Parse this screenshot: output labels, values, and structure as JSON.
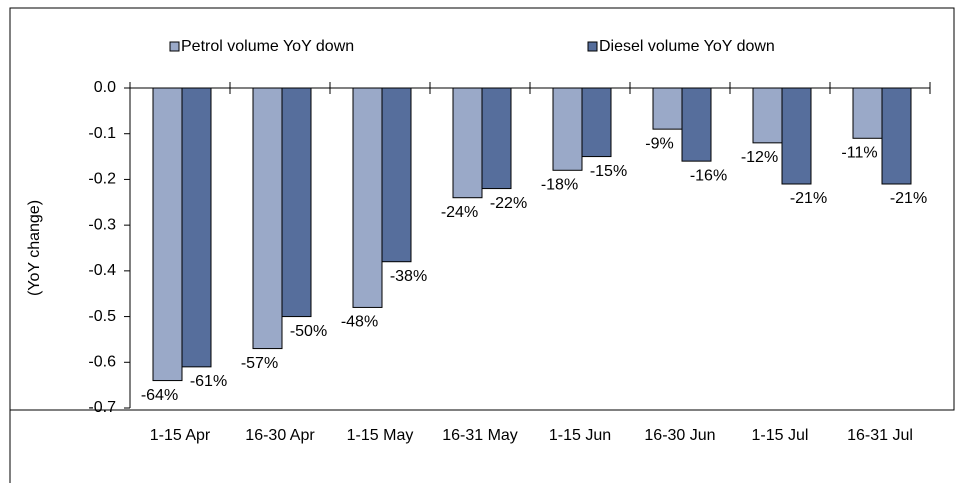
{
  "chart_data": {
    "type": "bar",
    "y_label": "(YoY change)",
    "categories": [
      "1-15 Apr",
      "16-30 Apr",
      "1-15 May",
      "16-31 May",
      "1-15 Jun",
      "16-30 Jun",
      "1-15 Jul",
      "16-31 Jul"
    ],
    "series": [
      {
        "name": "Petrol volume YoY down",
        "color": "#9aa9c8",
        "values": [
          -0.64,
          -0.57,
          -0.48,
          -0.24,
          -0.18,
          -0.09,
          -0.12,
          -0.11
        ],
        "value_labels": [
          "-64%",
          "-57%",
          "-48%",
          "-24%",
          "-18%",
          "-9%",
          "-12%",
          "-11%"
        ]
      },
      {
        "name": "Diesel volume YoY down",
        "color": "#566e9c",
        "values": [
          -0.61,
          -0.5,
          -0.38,
          -0.22,
          -0.15,
          -0.16,
          -0.21,
          -0.21
        ],
        "value_labels": [
          "-61%",
          "-50%",
          "-38%",
          "-22%",
          "-15%",
          "-16%",
          "-21%",
          "-21%"
        ]
      }
    ],
    "ylim": [
      -0.7,
      0
    ],
    "yticks": [
      {
        "value": 0,
        "label": "0.0"
      },
      -0.1,
      -0.2,
      -0.3,
      -0.4,
      -0.5,
      -0.6,
      -0.7
    ],
    "legend": "top"
  }
}
